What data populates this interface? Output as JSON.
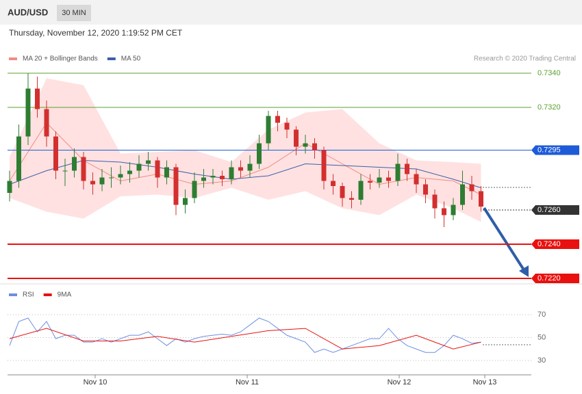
{
  "header": {
    "symbol": "AUD/USD",
    "timeframe": "30 MIN",
    "timestamp": "Thursday, November 12, 2020 1:19:52 PM CET"
  },
  "chart_data": [
    {
      "type": "candlestick",
      "legend": [
        {
          "name": "MA 20 + Bollinger Bands",
          "color": "#f28b82"
        },
        {
          "name": "MA 50",
          "color": "#3b5ea8"
        }
      ],
      "credit": "Research © 2020 Trading Central",
      "up_color": "#2e7d32",
      "down_color": "#d32f2f",
      "band_color": "#ffd9d9",
      "candles": [
        [
          0.727,
          0.7283,
          0.7265,
          0.7277
        ],
        [
          0.7277,
          0.731,
          0.7273,
          0.7303
        ],
        [
          0.7303,
          0.734,
          0.7298,
          0.7331
        ],
        [
          0.7331,
          0.7338,
          0.7314,
          0.7319
        ],
        [
          0.7319,
          0.7324,
          0.7297,
          0.7303
        ],
        [
          0.7303,
          0.7306,
          0.7278,
          0.7283
        ],
        [
          0.7283,
          0.729,
          0.7274,
          0.7283
        ],
        [
          0.7283,
          0.7296,
          0.7279,
          0.7291
        ],
        [
          0.7291,
          0.7294,
          0.7272,
          0.7277
        ],
        [
          0.7277,
          0.7282,
          0.7269,
          0.7275
        ],
        [
          0.7275,
          0.7284,
          0.7271,
          0.7279
        ],
        [
          0.7279,
          0.7285,
          0.7273,
          0.7279
        ],
        [
          0.7279,
          0.7286,
          0.7275,
          0.7281
        ],
        [
          0.7281,
          0.7288,
          0.7276,
          0.7283
        ],
        [
          0.7283,
          0.7292,
          0.7279,
          0.7287
        ],
        [
          0.7287,
          0.7294,
          0.7283,
          0.7289
        ],
        [
          0.7289,
          0.7291,
          0.7273,
          0.7279
        ],
        [
          0.7279,
          0.7289,
          0.7275,
          0.7285
        ],
        [
          0.7285,
          0.7287,
          0.7257,
          0.7263
        ],
        [
          0.7263,
          0.7272,
          0.7258,
          0.7267
        ],
        [
          0.7267,
          0.7282,
          0.7264,
          0.7277
        ],
        [
          0.7277,
          0.7284,
          0.7273,
          0.7279
        ],
        [
          0.7279,
          0.7284,
          0.7275,
          0.728
        ],
        [
          0.728,
          0.7283,
          0.7274,
          0.7278
        ],
        [
          0.7278,
          0.7289,
          0.7275,
          0.7285
        ],
        [
          0.7285,
          0.7289,
          0.7279,
          0.7283
        ],
        [
          0.7283,
          0.7292,
          0.7279,
          0.7287
        ],
        [
          0.7287,
          0.7304,
          0.7284,
          0.7299
        ],
        [
          0.7299,
          0.7318,
          0.7295,
          0.7315
        ],
        [
          0.7315,
          0.7318,
          0.7306,
          0.7311
        ],
        [
          0.7311,
          0.7314,
          0.7302,
          0.7307
        ],
        [
          0.7307,
          0.7309,
          0.7292,
          0.7297
        ],
        [
          0.7297,
          0.7304,
          0.7293,
          0.7299
        ],
        [
          0.7299,
          0.7302,
          0.729,
          0.7295
        ],
        [
          0.7295,
          0.7297,
          0.7272,
          0.7277
        ],
        [
          0.7277,
          0.7281,
          0.7269,
          0.7274
        ],
        [
          0.7274,
          0.7276,
          0.7262,
          0.7267
        ],
        [
          0.7267,
          0.7271,
          0.7261,
          0.7266
        ],
        [
          0.7266,
          0.7281,
          0.7263,
          0.7277
        ],
        [
          0.7277,
          0.7281,
          0.7272,
          0.7276
        ],
        [
          0.7276,
          0.7284,
          0.7273,
          0.7279
        ],
        [
          0.7279,
          0.7283,
          0.7273,
          0.7277
        ],
        [
          0.7277,
          0.7293,
          0.7274,
          0.7287
        ],
        [
          0.7287,
          0.729,
          0.7277,
          0.7281
        ],
        [
          0.7281,
          0.7284,
          0.727,
          0.7275
        ],
        [
          0.7275,
          0.7278,
          0.7264,
          0.7269
        ],
        [
          0.7269,
          0.7272,
          0.7255,
          0.7261
        ],
        [
          0.7261,
          0.7265,
          0.725,
          0.7257
        ],
        [
          0.7257,
          0.7267,
          0.7254,
          0.7263
        ],
        [
          0.7263,
          0.7283,
          0.726,
          0.7275
        ],
        [
          0.7275,
          0.728,
          0.7266,
          0.7271
        ],
        [
          0.7271,
          0.7274,
          0.7259,
          0.7262
        ]
      ],
      "bollinger": {
        "x": [
          0,
          4,
          8,
          12,
          16,
          20,
          24,
          28,
          32,
          36,
          40,
          44,
          48,
          51
        ],
        "upper": [
          0.7291,
          0.7337,
          0.7333,
          0.7293,
          0.7294,
          0.7295,
          0.7288,
          0.7307,
          0.7317,
          0.7319,
          0.7299,
          0.7289,
          0.7288,
          0.7287
        ],
        "lower": [
          0.7267,
          0.7259,
          0.7255,
          0.7268,
          0.7269,
          0.7267,
          0.7273,
          0.7266,
          0.7271,
          0.7261,
          0.7257,
          0.7269,
          0.7261,
          0.7253
        ],
        "ma20": [
          0.7277,
          0.7311,
          0.7289,
          0.7277,
          0.7281,
          0.7275,
          0.7277,
          0.7285,
          0.7299,
          0.7287,
          0.7275,
          0.7279,
          0.7277,
          0.7269
        ]
      },
      "ma50": {
        "x": [
          0,
          4,
          8,
          12,
          16,
          20,
          24,
          28,
          32,
          36,
          40,
          44,
          48,
          51
        ],
        "values": [
          0.7275,
          0.7283,
          0.7289,
          0.7288,
          0.7285,
          0.7281,
          0.7278,
          0.728,
          0.7287,
          0.7286,
          0.7285,
          0.7284,
          0.7278,
          0.7273
        ]
      },
      "levels": [
        {
          "value": {
            "value": 0.734,
            "label": "0.7340"
          },
          "color": "#5aa02c",
          "tag": false
        },
        {
          "value": {
            "value": 0.732,
            "label": "0.7320"
          },
          "color": "#5aa02c",
          "tag": false
        },
        {
          "value": 0.7295,
          "color": "#1e5bd8",
          "tag": true
        },
        {
          "value": {
            "value": 0.726,
            "label": "0.7260"
          },
          "color": "#333333",
          "tag": true
        },
        {
          "value": {
            "value": 0.724,
            "label": "0.7240"
          },
          "color": "#e8110f",
          "tag": true
        },
        {
          "value": {
            "value": 0.722,
            "label": "0.7220"
          },
          "color": "#e8110f",
          "tag": true
        }
      ],
      "ylim": [
        0.7217,
        0.7345
      ],
      "x_labels": [
        "Nov 10",
        "Nov 11",
        "Nov 12",
        "Nov 13"
      ]
    },
    {
      "type": "line",
      "series": [
        {
          "name": "RSI",
          "color": "#6b8fe0",
          "values": [
            43,
            64,
            67,
            55,
            64,
            49,
            52,
            52,
            46,
            46,
            49,
            46,
            49,
            52,
            52,
            55,
            49,
            43,
            49,
            46,
            49,
            51,
            52,
            53,
            52,
            55,
            61,
            67,
            64,
            58,
            52,
            49,
            46,
            37,
            40,
            37,
            40,
            43,
            46,
            49,
            49,
            58,
            49,
            43,
            40,
            37,
            37,
            43,
            52,
            49,
            45,
            46
          ]
        },
        {
          "name": "9MA",
          "color": "#e8110f",
          "x": [
            0,
            4,
            8,
            12,
            16,
            20,
            24,
            28,
            32,
            36,
            40,
            44,
            48,
            51
          ],
          "values": [
            49,
            58,
            47,
            47,
            51,
            46,
            51,
            56,
            58,
            40,
            43,
            52,
            40,
            46
          ]
        }
      ],
      "ylim": [
        19,
        91
      ],
      "yticks": [
        70,
        50,
        30
      ]
    }
  ]
}
